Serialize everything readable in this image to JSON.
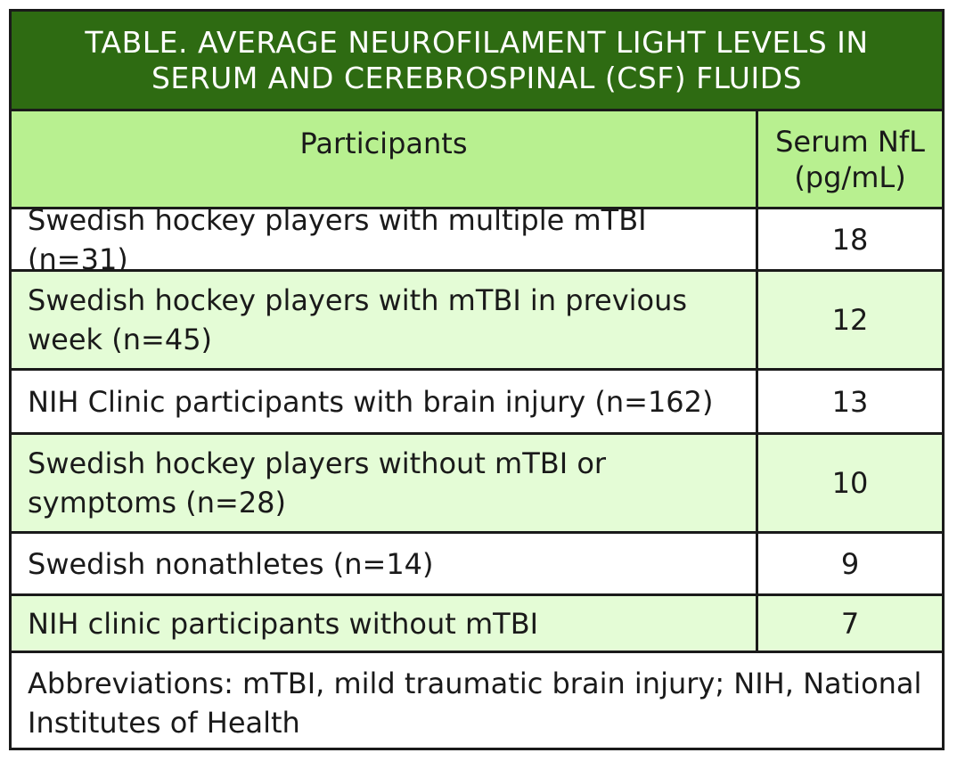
{
  "table": {
    "title": "TABLE. AVERAGE NEUROFILAMENT LIGHT LEVELS IN SERUM AND CEREBROSPINAL (CSF) FLUIDS",
    "header": {
      "participants": "Participants",
      "serum_line1": "Serum NfL",
      "serum_line2": "(pg/mL)"
    },
    "rows": [
      {
        "participant": "Swedish hockey players with multiple mTBI (n=31)",
        "value": "18"
      },
      {
        "participant": "Swedish hockey players with mTBI in previous week (n=45)",
        "value": "12"
      },
      {
        "participant": "NIH Clinic participants with brain injury (n=162)",
        "value": "13"
      },
      {
        "participant": "Swedish hockey players without mTBI or symptoms (n=28)",
        "value": "10"
      },
      {
        "participant": "Swedish nonathletes (n=14)",
        "value": "9"
      },
      {
        "participant": "NIH clinic participants without mTBI",
        "value": "7"
      }
    ],
    "footnote": "Abbreviations: mTBI, mild traumatic brain injury; NIH, National Institutes of Health"
  },
  "colors": {
    "title_background": "#2e6b12",
    "header_background": "#b8f090",
    "alt_row_background": "#e4fcd6",
    "border": "#1a1a1a"
  }
}
